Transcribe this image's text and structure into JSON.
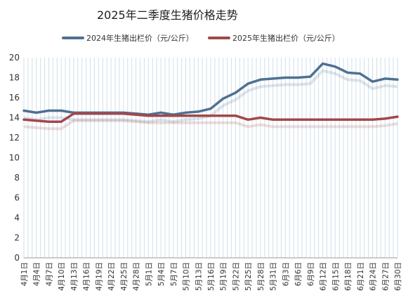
{
  "chart_data": {
    "type": "line",
    "title": "2025年二季度生猪价格走势",
    "xlabel": "",
    "ylabel": "",
    "ylim": [
      0,
      20
    ],
    "yticks": [
      0,
      2,
      4,
      6,
      8,
      10,
      12,
      14,
      16,
      18,
      20
    ],
    "grid": "vertical",
    "legend_position": "top",
    "x": [
      "4月1日",
      "4月4日",
      "4月7日",
      "4月10日",
      "4月13日",
      "4月16日",
      "4月19日",
      "4月22日",
      "4月25日",
      "4月28日",
      "5月1日",
      "5月4日",
      "5月7日",
      "5月10日",
      "5月13日",
      "5月16日",
      "5月19日",
      "5月22日",
      "5月25日",
      "5月28日",
      "5月31日",
      "6月3日",
      "6月6日",
      "6月9日",
      "6月12日",
      "6月15日",
      "6月18日",
      "6月21日",
      "6月24日",
      "6月27日",
      "6月30日"
    ],
    "series": [
      {
        "name": "2024年生猪出栏价（元/公斤）",
        "color": "#4f7191",
        "values": [
          14.7,
          14.5,
          14.7,
          14.7,
          14.5,
          14.5,
          14.5,
          14.5,
          14.5,
          14.4,
          14.3,
          14.5,
          14.3,
          14.5,
          14.6,
          14.9,
          15.9,
          16.5,
          17.4,
          17.8,
          17.9,
          18.0,
          18.0,
          18.1,
          19.4,
          19.1,
          18.5,
          18.4,
          17.6,
          17.9,
          17.8
        ]
      },
      {
        "name": "2025年生猪出栏价（元/公斤）",
        "color": "#a3474a",
        "values": [
          13.8,
          13.7,
          13.6,
          13.6,
          14.4,
          14.4,
          14.4,
          14.4,
          14.4,
          14.3,
          14.2,
          14.2,
          14.2,
          14.2,
          14.2,
          14.2,
          14.2,
          14.2,
          13.8,
          14.0,
          13.8,
          13.8,
          13.8,
          13.8,
          13.8,
          13.8,
          13.8,
          13.8,
          13.8,
          13.9,
          14.1
        ]
      }
    ]
  }
}
